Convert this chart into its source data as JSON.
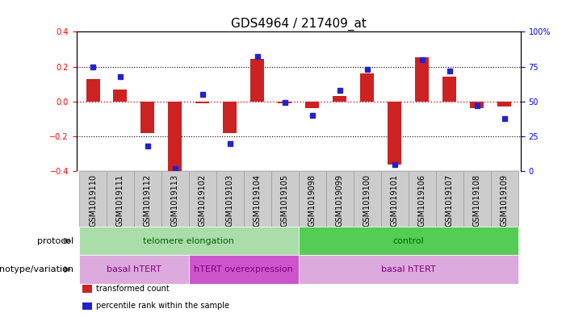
{
  "title": "GDS4964 / 217409_at",
  "samples": [
    "GSM1019110",
    "GSM1019111",
    "GSM1019112",
    "GSM1019113",
    "GSM1019102",
    "GSM1019103",
    "GSM1019104",
    "GSM1019105",
    "GSM1019098",
    "GSM1019099",
    "GSM1019100",
    "GSM1019101",
    "GSM1019106",
    "GSM1019107",
    "GSM1019108",
    "GSM1019109"
  ],
  "transformed_count": [
    0.13,
    0.07,
    -0.18,
    -0.4,
    -0.01,
    -0.18,
    0.245,
    -0.01,
    -0.04,
    0.03,
    0.16,
    -0.36,
    0.255,
    0.14,
    -0.04,
    -0.03
  ],
  "percentile_rank": [
    75,
    68,
    18,
    2,
    55,
    20,
    82,
    49,
    40,
    58,
    73,
    5,
    80,
    72,
    47,
    38
  ],
  "ylim_left": [
    -0.4,
    0.4
  ],
  "ylim_right": [
    0,
    100
  ],
  "yticks_left": [
    -0.4,
    -0.2,
    0.0,
    0.2,
    0.4
  ],
  "yticks_right": [
    0,
    25,
    50,
    75,
    100
  ],
  "ytick_labels_right": [
    "0",
    "25",
    "50",
    "75",
    "100%"
  ],
  "hline_dotted_black": [
    0.2,
    -0.2
  ],
  "hline_red": 0.0,
  "bar_color": "#cc2222",
  "dot_color": "#2222cc",
  "protocol_groups": [
    {
      "label": "telomere elongation",
      "start": 0,
      "end": 7,
      "color": "#aaddaa"
    },
    {
      "label": "control",
      "start": 8,
      "end": 15,
      "color": "#55cc55"
    }
  ],
  "genotype_groups": [
    {
      "label": "basal hTERT",
      "start": 0,
      "end": 3,
      "color": "#ddaadd"
    },
    {
      "label": "hTERT overexpression",
      "start": 4,
      "end": 7,
      "color": "#cc55cc"
    },
    {
      "label": "basal hTERT",
      "start": 8,
      "end": 15,
      "color": "#ddaadd"
    }
  ],
  "legend_items": [
    {
      "label": "transformed count",
      "color": "#cc2222",
      "marker": "s"
    },
    {
      "label": "percentile rank within the sample",
      "color": "#2222cc",
      "marker": "s"
    }
  ],
  "bar_width": 0.5,
  "tick_label_fontsize": 7,
  "title_fontsize": 11,
  "background_color": "#ffffff",
  "sample_label_bg": "#cccccc",
  "sample_label_border": "#999999"
}
